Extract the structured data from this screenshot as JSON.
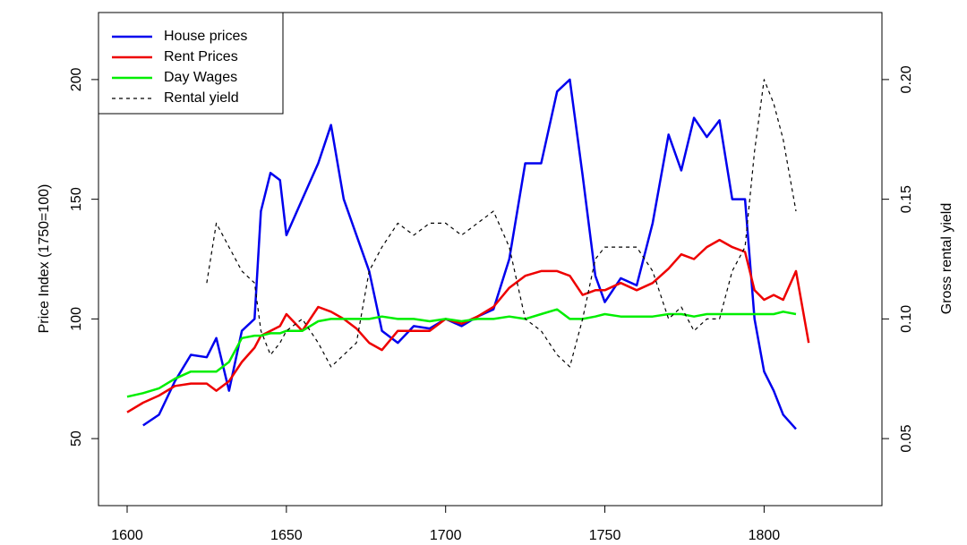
{
  "chart_data": {
    "type": "line",
    "ylabel": "Price Index (1750=100)",
    "y2label": "Gross rental yield",
    "x": [
      1600,
      1605,
      1610,
      1615,
      1620,
      1625,
      1628,
      1632,
      1636,
      1640,
      1642,
      1645,
      1648,
      1650,
      1655,
      1660,
      1664,
      1668,
      1672,
      1676,
      1680,
      1685,
      1690,
      1695,
      1700,
      1705,
      1710,
      1715,
      1720,
      1725,
      1730,
      1735,
      1739,
      1743,
      1747,
      1750,
      1755,
      1760,
      1765,
      1770,
      1774,
      1778,
      1782,
      1786,
      1790,
      1794,
      1797,
      1800,
      1803,
      1806,
      1810,
      1814
    ],
    "series": [
      {
        "name": "House prices",
        "color": "#0000ee",
        "style": "solid",
        "axis": "y",
        "values": [
          null,
          55.5,
          60,
          74,
          85,
          84,
          92,
          70,
          95,
          100,
          145,
          161,
          158,
          135,
          150,
          165,
          181,
          150,
          135,
          120,
          95,
          90,
          97,
          96,
          100,
          97,
          101,
          104,
          125,
          165,
          165,
          195,
          200,
          160,
          118,
          107,
          117,
          114,
          140,
          177,
          162,
          184,
          176,
          183,
          150,
          150,
          100,
          78,
          70,
          60,
          54,
          null
        ]
      },
      {
        "name": "Rent Prices",
        "color": "#ee0000",
        "style": "solid",
        "axis": "y",
        "values": [
          61,
          65,
          68,
          72,
          73,
          73,
          70,
          74,
          82,
          88,
          93,
          95,
          97,
          102,
          95,
          105,
          103,
          100,
          96,
          90,
          87,
          95,
          95,
          95,
          100,
          98,
          101,
          105,
          113,
          118,
          120,
          120,
          118,
          110,
          112,
          112,
          115,
          112,
          115,
          121,
          127,
          125,
          130,
          133,
          130,
          128,
          112,
          108,
          110,
          108,
          120,
          90
        ]
      },
      {
        "name": "Day Wages",
        "color": "#00ee00",
        "style": "solid",
        "axis": "y",
        "values": [
          67.5,
          69,
          71,
          75,
          78,
          78,
          78,
          82,
          92,
          93,
          93,
          94,
          94,
          95,
          95,
          99,
          100,
          100,
          100,
          100,
          101,
          100,
          100,
          99,
          100,
          99,
          100,
          100,
          101,
          100,
          102,
          104,
          100,
          100,
          101,
          102,
          101,
          101,
          101,
          102,
          102,
          101,
          102,
          102,
          102,
          102,
          102,
          102,
          102,
          103,
          102,
          null
        ]
      },
      {
        "name": "Rental yield",
        "color": "#000000",
        "style": "dashed",
        "axis": "y2",
        "values": [
          null,
          null,
          null,
          null,
          null,
          0.115,
          0.14,
          0.13,
          0.12,
          0.115,
          0.095,
          0.085,
          0.09,
          0.095,
          0.1,
          0.09,
          0.08,
          0.085,
          0.09,
          0.12,
          0.13,
          0.14,
          0.135,
          0.14,
          0.14,
          0.135,
          0.14,
          0.145,
          0.13,
          0.1,
          0.095,
          0.085,
          0.08,
          0.1,
          0.125,
          0.13,
          0.13,
          0.13,
          0.12,
          0.1,
          0.105,
          0.095,
          0.1,
          0.1,
          0.12,
          0.13,
          0.17,
          0.2,
          0.19,
          0.175,
          0.145,
          null
        ]
      }
    ],
    "xlim": [
      1591,
      1837
    ],
    "xticks": [
      1600,
      1650,
      1700,
      1750,
      1800
    ],
    "ylim": [
      22,
      228
    ],
    "yticks": [
      50,
      100,
      150,
      200
    ],
    "y2lim": [
      0.022,
      0.228
    ],
    "y2ticks": [
      {
        "value": 0.05,
        "label": "0.05"
      },
      {
        "value": 0.1,
        "label": "0.10"
      },
      {
        "value": 0.15,
        "label": "0.15"
      },
      {
        "value": 0.2,
        "label": "0.20"
      }
    ],
    "legend": "top-left"
  }
}
